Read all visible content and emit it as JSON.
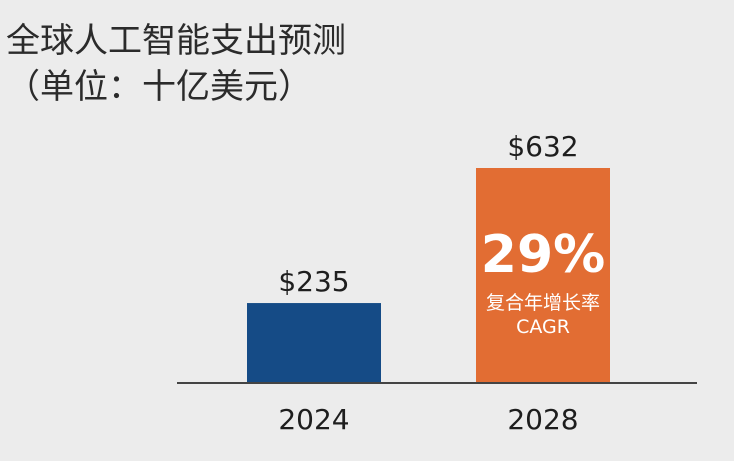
{
  "chart_data": {
    "type": "bar",
    "title": "全球人工智能支出预测",
    "subtitle": "（单位：十亿美元）",
    "categories": [
      "2024",
      "2028"
    ],
    "values": [
      235,
      632
    ],
    "value_labels": [
      "$235",
      "$632"
    ],
    "ylim": [
      0,
      632
    ],
    "xlabel": "",
    "ylabel": "",
    "grid": false,
    "bar_colors": [
      "#154b86",
      "#e26d33"
    ],
    "annotation": {
      "bar_index": 1,
      "percent": "29%",
      "label_zh": "复合年增长率",
      "label_en": "CAGR"
    }
  },
  "colors": {
    "background": "#ececec",
    "axis": "#444444"
  }
}
